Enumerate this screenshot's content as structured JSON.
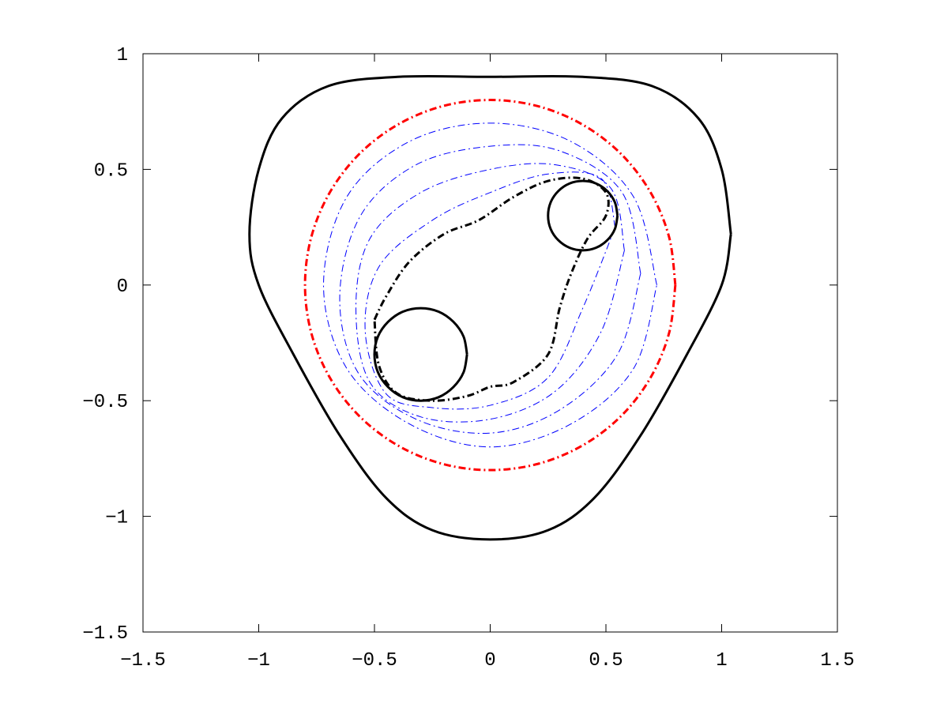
{
  "chart_data": {
    "type": "line",
    "xlim": [
      -1.5,
      1.5
    ],
    "ylim": [
      -1.5,
      1
    ],
    "xticks": [
      {
        "value": -1.5,
        "label": "−1.5"
      },
      {
        "value": -1,
        "label": "−1"
      },
      {
        "value": -0.5,
        "label": "−0.5"
      },
      0,
      0.5,
      1,
      1.5
    ],
    "yticks": [
      {
        "value": -1.5,
        "label": "−1.5"
      },
      {
        "value": -1,
        "label": "−1"
      },
      {
        "value": -0.5,
        "label": "−0.5"
      },
      0,
      0.5,
      1
    ],
    "grid": false,
    "series": [
      {
        "color": "#000000",
        "dash": "solid",
        "width": 3,
        "x": [
          1.04,
          1.0,
          0.9,
          0.7,
          0.4,
          0,
          -0.4,
          -0.7,
          -0.9,
          -1.0,
          -1.04,
          -1.0,
          -0.85,
          -0.65,
          -0.45,
          -0.25,
          0,
          0.25,
          0.45,
          0.65,
          0.85,
          1.0,
          1.04
        ],
        "y": [
          0.22,
          0.5,
          0.72,
          0.86,
          0.9,
          0.9,
          0.9,
          0.86,
          0.72,
          0.5,
          0.22,
          0.0,
          -0.3,
          -0.65,
          -0.92,
          -1.06,
          -1.1,
          -1.06,
          -0.92,
          -0.65,
          -0.3,
          0.0,
          0.22
        ]
      },
      {
        "color": "#ff0000",
        "dash": "dashdot",
        "width": 3,
        "x": [
          0.8,
          0.773,
          0.693,
          0.566,
          0.4,
          0.207,
          0,
          -0.207,
          -0.4,
          -0.566,
          -0.693,
          -0.773,
          -0.8,
          -0.773,
          -0.693,
          -0.566,
          -0.4,
          -0.207,
          0,
          0.207,
          0.4,
          0.566,
          0.693,
          0.773,
          0.8
        ],
        "y": [
          0,
          0.207,
          0.4,
          0.566,
          0.693,
          0.773,
          0.8,
          0.773,
          0.693,
          0.566,
          0.4,
          0.207,
          0,
          -0.207,
          -0.4,
          -0.566,
          -0.693,
          -0.773,
          -0.8,
          -0.773,
          -0.693,
          -0.566,
          -0.4,
          -0.207,
          0
        ]
      },
      {
        "color": "#0000ff",
        "dash": "dashdot",
        "width": 1,
        "x": [
          0.72,
          0.62,
          0.35,
          0,
          -0.35,
          -0.62,
          -0.72,
          -0.62,
          -0.35,
          0,
          0.35,
          0.62,
          0.72
        ],
        "y": [
          0,
          0.38,
          0.62,
          0.7,
          0.62,
          0.38,
          0,
          -0.36,
          -0.6,
          -0.7,
          -0.6,
          -0.36,
          0
        ]
      },
      {
        "color": "#0000ff",
        "dash": "dashdot",
        "width": 1,
        "x": [
          0.65,
          0.57,
          0.3,
          0,
          -0.32,
          -0.56,
          -0.65,
          -0.57,
          -0.32,
          0,
          0.3,
          0.55,
          0.65
        ],
        "y": [
          0.05,
          0.4,
          0.58,
          0.6,
          0.52,
          0.3,
          -0.05,
          -0.38,
          -0.58,
          -0.64,
          -0.54,
          -0.3,
          0.05
        ]
      },
      {
        "color": "#0000ff",
        "dash": "dashdot",
        "width": 1,
        "x": [
          0.58,
          0.52,
          0.28,
          0,
          -0.3,
          -0.52,
          -0.58,
          -0.52,
          -0.3,
          0,
          0.28,
          0.48,
          0.58
        ],
        "y": [
          0.15,
          0.42,
          0.52,
          0.5,
          0.4,
          0.2,
          -0.1,
          -0.42,
          -0.57,
          -0.58,
          -0.46,
          -0.2,
          0.15
        ]
      },
      {
        "color": "#0000ff",
        "dash": "dashdot",
        "width": 1,
        "x": [
          0.54,
          0.48,
          0.25,
          0,
          -0.25,
          -0.48,
          -0.54,
          -0.45,
          -0.25,
          0,
          0.25,
          0.4,
          0.54
        ],
        "y": [
          0.25,
          0.46,
          0.48,
          0.4,
          0.28,
          0.08,
          -0.2,
          -0.47,
          -0.53,
          -0.52,
          -0.4,
          -0.1,
          0.25
        ]
      },
      {
        "color": "#000000",
        "dash": "dashdot",
        "width": 3,
        "x": [
          -0.5,
          -0.45,
          -0.35,
          -0.2,
          -0.05,
          0.1,
          0.25,
          0.4,
          0.5,
          0.5,
          0.42,
          0.35,
          0.3,
          0.25,
          0.1,
          0,
          -0.1,
          -0.25,
          -0.4,
          -0.48,
          -0.5
        ],
        "y": [
          -0.15,
          -0.05,
          0.1,
          0.22,
          0.28,
          0.38,
          0.45,
          0.46,
          0.4,
          0.3,
          0.2,
          0.05,
          -0.1,
          -0.3,
          -0.42,
          -0.44,
          -0.48,
          -0.5,
          -0.47,
          -0.35,
          -0.15
        ]
      },
      {
        "color": "#000000",
        "dash": "solid",
        "width": 3,
        "x": [
          -0.1,
          -0.115,
          -0.159,
          -0.223,
          -0.3,
          -0.377,
          -0.441,
          -0.485,
          -0.5,
          -0.485,
          -0.441,
          -0.377,
          -0.3,
          -0.223,
          -0.159,
          -0.115,
          -0.1
        ],
        "y": [
          -0.3,
          -0.223,
          -0.159,
          -0.115,
          -0.1,
          -0.115,
          -0.159,
          -0.223,
          -0.3,
          -0.377,
          -0.441,
          -0.485,
          -0.5,
          -0.485,
          -0.441,
          -0.377,
          -0.3
        ]
      },
      {
        "color": "#000000",
        "dash": "solid",
        "width": 3,
        "x": [
          0.55,
          0.539,
          0.506,
          0.457,
          0.4,
          0.343,
          0.294,
          0.261,
          0.25,
          0.261,
          0.294,
          0.343,
          0.4,
          0.457,
          0.506,
          0.539,
          0.55
        ],
        "y": [
          0.3,
          0.357,
          0.406,
          0.439,
          0.45,
          0.439,
          0.406,
          0.357,
          0.3,
          0.243,
          0.194,
          0.161,
          0.15,
          0.161,
          0.194,
          0.243,
          0.3
        ]
      }
    ]
  }
}
